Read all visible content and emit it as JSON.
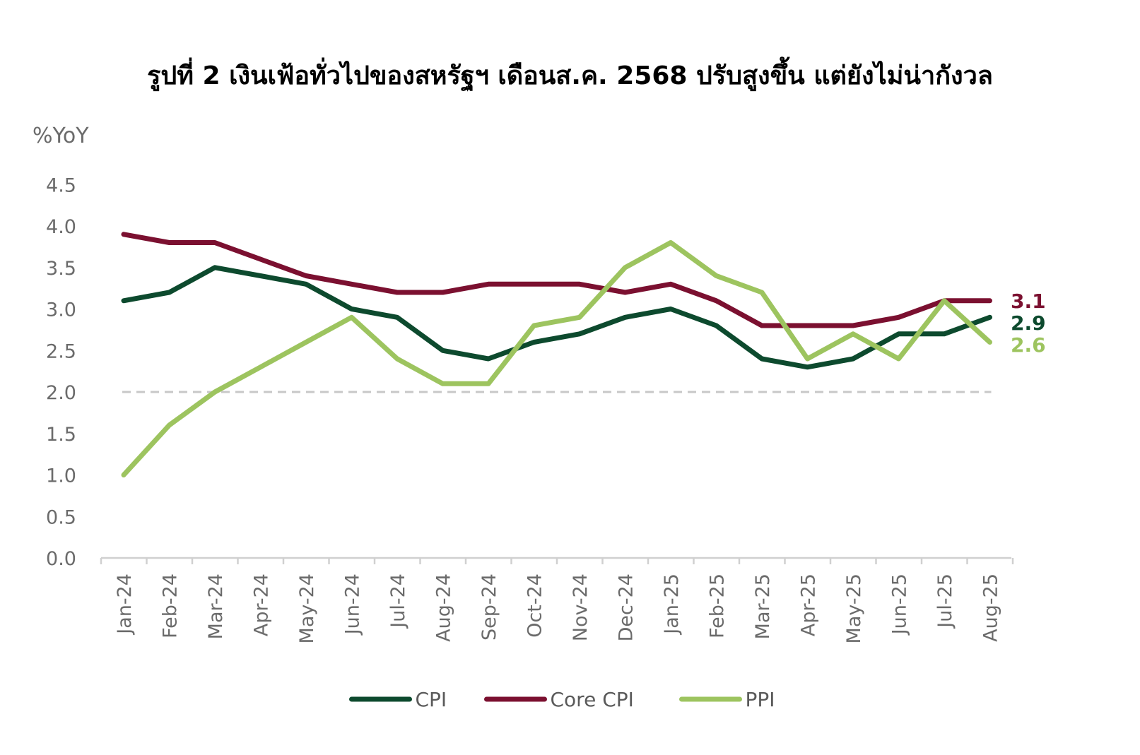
{
  "chart_data": {
    "type": "line",
    "title": "รูปที่ 2 เงินเฟ้อทั่วไปของสหรัฐฯ เดือนส.ค. 2568 ปรับสูงขึ้น แต่ยังไม่น่ากังวล",
    "ylabel": "%YoY",
    "xlabel": "",
    "ylim": [
      0,
      4.5
    ],
    "yticks": [
      "0.0",
      "0.5",
      "1.0",
      "1.5",
      "2.0",
      "2.5",
      "3.0",
      "3.5",
      "4.0",
      "4.5"
    ],
    "categories": [
      "Jan-24",
      "Feb-24",
      "Mar-24",
      "Apr-24",
      "May-24",
      "Jun-24",
      "Jul-24",
      "Aug-24",
      "Sep-24",
      "Oct-24",
      "Nov-24",
      "Dec-24",
      "Jan-25",
      "Feb-25",
      "Mar-25",
      "Apr-25",
      "May-25",
      "Jun-25",
      "Jul-25",
      "Aug-25"
    ],
    "reference_line": {
      "y": 2.0,
      "style": "dashed",
      "color": "#c8c8c8"
    },
    "series": [
      {
        "name": "CPI",
        "color": "#0d4a2e",
        "values": [
          3.1,
          3.2,
          3.5,
          3.4,
          3.3,
          3.0,
          2.9,
          2.5,
          2.4,
          2.6,
          2.7,
          2.9,
          3.0,
          2.8,
          2.4,
          2.3,
          2.4,
          2.7,
          2.7,
          2.9
        ],
        "end_label": "2.9"
      },
      {
        "name": "Core CPI",
        "color": "#7b1030",
        "values": [
          3.9,
          3.8,
          3.8,
          3.6,
          3.4,
          3.3,
          3.2,
          3.2,
          3.3,
          3.3,
          3.3,
          3.2,
          3.3,
          3.1,
          2.8,
          2.8,
          2.8,
          2.9,
          3.1,
          3.1
        ],
        "end_label": "3.1"
      },
      {
        "name": "PPI",
        "color": "#9dc45f",
        "values": [
          1.0,
          1.6,
          2.0,
          2.3,
          2.6,
          2.9,
          2.4,
          2.1,
          2.1,
          2.8,
          2.9,
          3.5,
          3.8,
          3.4,
          3.2,
          2.4,
          2.7,
          2.4,
          3.1,
          2.6
        ],
        "end_label": "2.6"
      }
    ],
    "legend_position": "bottom",
    "grid": false
  }
}
